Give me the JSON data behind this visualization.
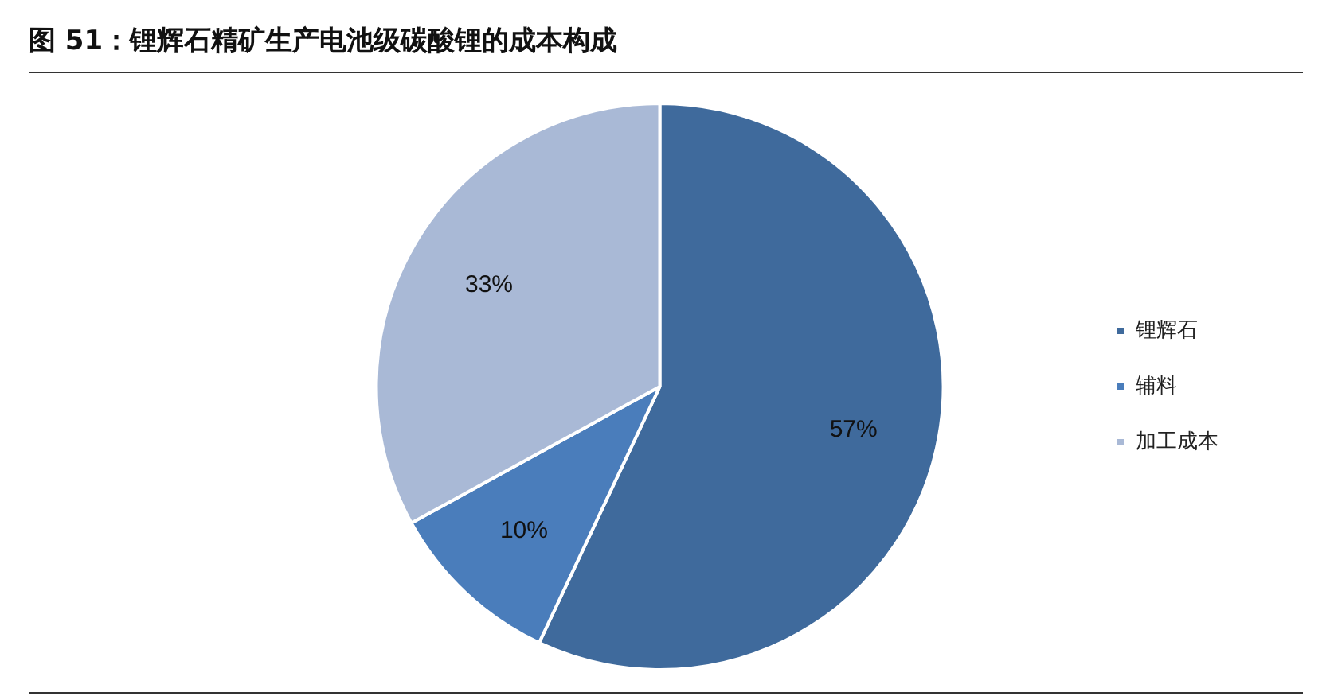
{
  "chart_data": {
    "type": "pie",
    "title": "图 51：锂辉石精矿生产电池级碳酸锂的成本构成",
    "categories": [
      "锂辉石",
      "辅料",
      "加工成本"
    ],
    "values": [
      57,
      10,
      33
    ],
    "colors": [
      "#3f6a9c",
      "#4a7dbb",
      "#a9b9d6"
    ],
    "value_labels": [
      "57%",
      "10%",
      "33%"
    ],
    "legend": "right"
  }
}
